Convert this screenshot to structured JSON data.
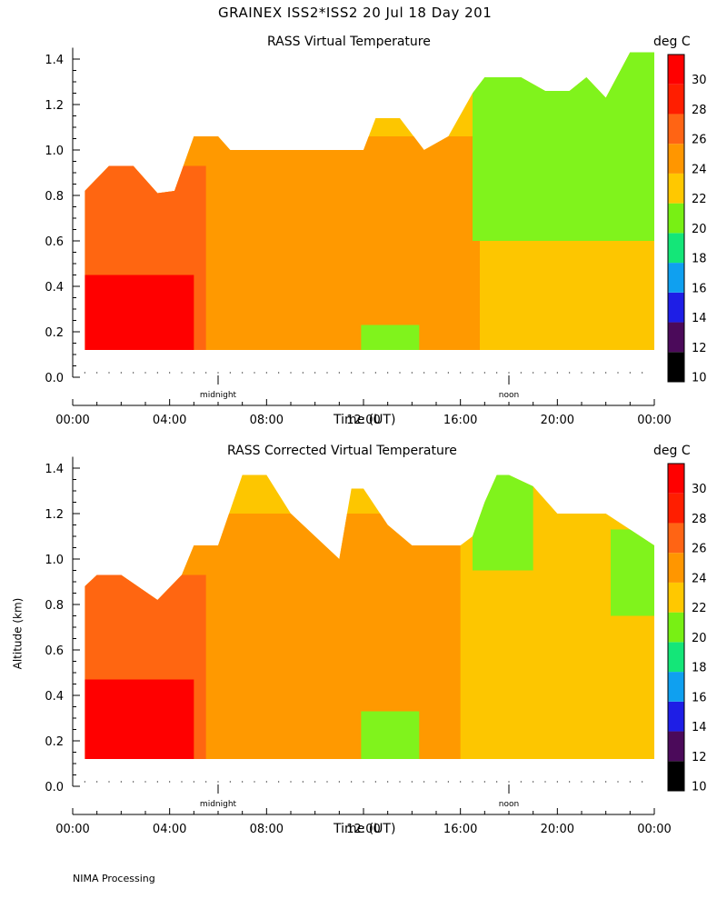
{
  "page_title": "GRAINEX ISS2*ISS2  20 Jul 18 Day 201",
  "footer": "NIMA Processing",
  "chart_data": [
    {
      "type": "heatmap",
      "title": "RASS Virtual Temperature",
      "xlabel": "Time (UT)",
      "ylabel": "",
      "colorbar_label": "deg C",
      "x_tick_labels": [
        "00:00",
        "04:00",
        "08:00",
        "12:00",
        "16:00",
        "20:00",
        "00:00"
      ],
      "x_ticks_hours": [
        0,
        4,
        8,
        12,
        16,
        20,
        24
      ],
      "x_markers": [
        {
          "label": "midnight",
          "hour": 6
        },
        {
          "label": "noon",
          "hour": 18
        }
      ],
      "y_tick_labels": [
        "0.0",
        "0.2",
        "0.4",
        "0.6",
        "0.8",
        "1.0",
        "1.2",
        "1.4"
      ],
      "ylim": [
        0,
        1.45
      ],
      "xlim": [
        0,
        24
      ],
      "colorbar_ticks": [
        "10",
        "12",
        "14",
        "16",
        "18",
        "20",
        "22",
        "24",
        "26",
        "28",
        "30"
      ],
      "colorbar_colors": [
        "#000000",
        "#4b0a5a",
        "#1e1ee6",
        "#0fa0f0",
        "#14e678",
        "#78f014",
        "#ffc800",
        "#ff9600",
        "#ff6414",
        "#ff1e00",
        "#ff0000"
      ],
      "color_by_value": {
        "20": "#80f31c",
        "22": "#fdc600",
        "24": "#ff9900",
        "26": "#ff6611",
        "28": "#ff1a00",
        "30": "#ff0000"
      },
      "profile_top_km": [
        [
          0.5,
          0.82
        ],
        [
          1.5,
          0.93
        ],
        [
          2.5,
          0.93
        ],
        [
          3.5,
          0.81
        ],
        [
          4.2,
          0.82
        ],
        [
          5,
          1.06
        ],
        [
          6,
          1.06
        ],
        [
          6.5,
          1.0
        ],
        [
          8,
          1.0
        ],
        [
          9,
          1.0
        ],
        [
          10.5,
          1.0
        ],
        [
          12,
          1.0
        ],
        [
          12.5,
          1.14
        ],
        [
          13.5,
          1.14
        ],
        [
          14.5,
          1.0
        ],
        [
          15.5,
          1.06
        ],
        [
          16.5,
          1.25
        ],
        [
          17,
          1.32
        ],
        [
          18.5,
          1.32
        ],
        [
          19.5,
          1.26
        ],
        [
          20.5,
          1.26
        ],
        [
          21.2,
          1.32
        ],
        [
          22,
          1.23
        ],
        [
          23,
          1.43
        ],
        [
          24,
          1.43
        ]
      ],
      "regions_by_temp": [
        {
          "value": 22,
          "hours": [
            0.5,
            24
          ],
          "km": [
            0.12,
            1.43
          ]
        },
        {
          "value": 24,
          "hours": [
            0.5,
            16.8
          ],
          "km": [
            0.12,
            1.06
          ]
        },
        {
          "value": 26,
          "hours": [
            0.5,
            5.5
          ],
          "km": [
            0.12,
            0.93
          ]
        },
        {
          "value": 30,
          "hours": [
            0.5,
            5.0
          ],
          "km": [
            0.12,
            0.45
          ]
        },
        {
          "value": 20,
          "hours": [
            16.5,
            24
          ],
          "km": [
            0.6,
            1.43
          ]
        },
        {
          "value": 20,
          "hours": [
            11.9,
            14.3
          ],
          "km": [
            0.12,
            0.23
          ]
        }
      ]
    },
    {
      "type": "heatmap",
      "title": "RASS Corrected Virtual Temperature",
      "xlabel": "Time (UT)",
      "ylabel": "Altitude (km)",
      "colorbar_label": "deg C",
      "x_tick_labels": [
        "00:00",
        "04:00",
        "08:00",
        "12:00",
        "16:00",
        "20:00",
        "00:00"
      ],
      "x_ticks_hours": [
        0,
        4,
        8,
        12,
        16,
        20,
        24
      ],
      "x_markers": [
        {
          "label": "midnight",
          "hour": 6
        },
        {
          "label": "noon",
          "hour": 18
        }
      ],
      "y_tick_labels": [
        "0.0",
        "0.2",
        "0.4",
        "0.6",
        "0.8",
        "1.0",
        "1.2",
        "1.4"
      ],
      "ylim": [
        0,
        1.45
      ],
      "xlim": [
        0,
        24
      ],
      "colorbar_ticks": [
        "10",
        "12",
        "14",
        "16",
        "18",
        "20",
        "22",
        "24",
        "26",
        "28",
        "30"
      ],
      "colorbar_colors": [
        "#000000",
        "#4b0a5a",
        "#1e1ee6",
        "#0fa0f0",
        "#14e678",
        "#78f014",
        "#ffc800",
        "#ff9600",
        "#ff6414",
        "#ff1e00",
        "#ff0000"
      ],
      "color_by_value": {
        "20": "#80f31c",
        "22": "#fdc600",
        "24": "#ff9900",
        "26": "#ff6611",
        "28": "#ff1a00",
        "30": "#ff0000"
      },
      "profile_top_km": [
        [
          0.5,
          0.88
        ],
        [
          1,
          0.93
        ],
        [
          2,
          0.93
        ],
        [
          3.5,
          0.82
        ],
        [
          4.5,
          0.93
        ],
        [
          5,
          1.06
        ],
        [
          6,
          1.06
        ],
        [
          7,
          1.37
        ],
        [
          8,
          1.37
        ],
        [
          9,
          1.2
        ],
        [
          11,
          1.0
        ],
        [
          11.5,
          1.31
        ],
        [
          12,
          1.31
        ],
        [
          13,
          1.15
        ],
        [
          14,
          1.06
        ],
        [
          15,
          1.06
        ],
        [
          16,
          1.06
        ],
        [
          16.5,
          1.1
        ],
        [
          17,
          1.25
        ],
        [
          17.5,
          1.37
        ],
        [
          18,
          1.37
        ],
        [
          19,
          1.32
        ],
        [
          20,
          1.2
        ],
        [
          22,
          1.2
        ],
        [
          23,
          1.13
        ],
        [
          24,
          1.06
        ]
      ],
      "regions_by_temp": [
        {
          "value": 22,
          "hours": [
            0.5,
            24
          ],
          "km": [
            0.12,
            1.37
          ]
        },
        {
          "value": 24,
          "hours": [
            0.5,
            16.0
          ],
          "km": [
            0.12,
            1.2
          ]
        },
        {
          "value": 26,
          "hours": [
            0.5,
            5.5
          ],
          "km": [
            0.12,
            0.93
          ]
        },
        {
          "value": 30,
          "hours": [
            0.5,
            5.0
          ],
          "km": [
            0.12,
            0.47
          ]
        },
        {
          "value": 20,
          "hours": [
            16.5,
            19.0
          ],
          "km": [
            0.95,
            1.37
          ]
        },
        {
          "value": 20,
          "hours": [
            22.2,
            24
          ],
          "km": [
            0.75,
            1.13
          ]
        },
        {
          "value": 20,
          "hours": [
            11.9,
            14.3
          ],
          "km": [
            0.12,
            0.33
          ]
        }
      ]
    }
  ]
}
